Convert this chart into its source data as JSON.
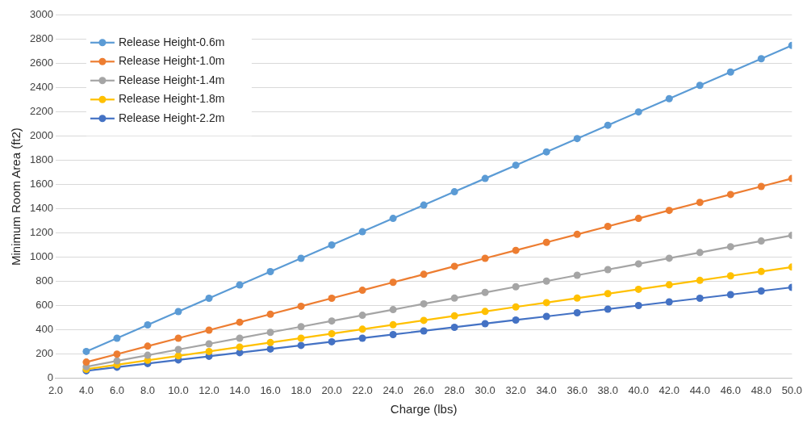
{
  "chart_data": {
    "type": "line",
    "xlabel": "Charge (lbs)",
    "ylabel": "Minimum Room Area (ft2)",
    "x": [
      4,
      6,
      8,
      10,
      12,
      14,
      16,
      18,
      20,
      22,
      24,
      26,
      28,
      30,
      32,
      34,
      36,
      38,
      40,
      42,
      44,
      46,
      48,
      50
    ],
    "xlim": [
      2,
      50
    ],
    "xticks": [
      {
        "value": 2,
        "label": "2.0"
      },
      {
        "value": 4,
        "label": "4.0"
      },
      {
        "value": 6,
        "label": "6.0"
      },
      {
        "value": 8,
        "label": "8.0"
      },
      {
        "value": 10,
        "label": "10.0"
      },
      {
        "value": 12,
        "label": "12.0"
      },
      {
        "value": 14,
        "label": "14.0"
      },
      {
        "value": 16,
        "label": "16.0"
      },
      {
        "value": 18,
        "label": "18.0"
      },
      {
        "value": 20,
        "label": "20.0"
      },
      {
        "value": 22,
        "label": "22.0"
      },
      {
        "value": 24,
        "label": "24.0"
      },
      {
        "value": 26,
        "label": "26.0"
      },
      {
        "value": 28,
        "label": "28.0"
      },
      {
        "value": 30,
        "label": "30.0"
      },
      {
        "value": 32,
        "label": "32.0"
      },
      {
        "value": 34,
        "label": "34.0"
      },
      {
        "value": 36,
        "label": "36.0"
      },
      {
        "value": 38,
        "label": "38.0"
      },
      {
        "value": 40,
        "label": "40.0"
      },
      {
        "value": 42,
        "label": "42.0"
      },
      {
        "value": 44,
        "label": "44.0"
      },
      {
        "value": 46,
        "label": "46.0"
      },
      {
        "value": 48,
        "label": "48.0"
      },
      {
        "value": 50,
        "label": "50.0"
      }
    ],
    "ylim": [
      0,
      3000
    ],
    "yticks": [
      0,
      200,
      400,
      600,
      800,
      1000,
      1200,
      1400,
      1600,
      1800,
      2000,
      2200,
      2400,
      2600,
      2800,
      3000
    ],
    "grid": "y",
    "legend": "top left",
    "marker": "circle",
    "line_style": "solid",
    "series": [
      {
        "name": "Release Height-0.6m",
        "color": "#5b9bd5",
        "values": [
          220,
          330,
          440,
          550,
          660,
          770,
          880,
          990,
          1100,
          1210,
          1320,
          1430,
          1540,
          1650,
          1760,
          1870,
          1980,
          2090,
          2200,
          2310,
          2420,
          2530,
          2640,
          2750
        ]
      },
      {
        "name": "Release Height-1.0m",
        "color": "#ed7d31",
        "values": [
          132,
          198,
          264,
          330,
          396,
          462,
          528,
          594,
          660,
          726,
          792,
          858,
          924,
          990,
          1056,
          1122,
          1188,
          1254,
          1320,
          1386,
          1452,
          1518,
          1584,
          1650
        ]
      },
      {
        "name": "Release Height-1.4m",
        "color": "#a5a5a5",
        "values": [
          94,
          142,
          189,
          236,
          283,
          330,
          378,
          425,
          472,
          519,
          566,
          614,
          661,
          708,
          755,
          802,
          850,
          897,
          944,
          991,
          1038,
          1086,
          1133,
          1180
        ]
      },
      {
        "name": "Release Height-1.8m",
        "color": "#ffc000",
        "values": [
          73,
          110,
          147,
          184,
          220,
          257,
          294,
          330,
          367,
          404,
          441,
          477,
          514,
          551,
          588,
          624,
          661,
          698,
          734,
          771,
          808,
          845,
          881,
          918
        ]
      },
      {
        "name": "Release Height-2.2m",
        "color": "#4472c4",
        "values": [
          60,
          90,
          120,
          150,
          180,
          210,
          240,
          270,
          300,
          330,
          360,
          390,
          420,
          450,
          480,
          510,
          540,
          570,
          600,
          630,
          660,
          690,
          720,
          750
        ]
      }
    ]
  }
}
